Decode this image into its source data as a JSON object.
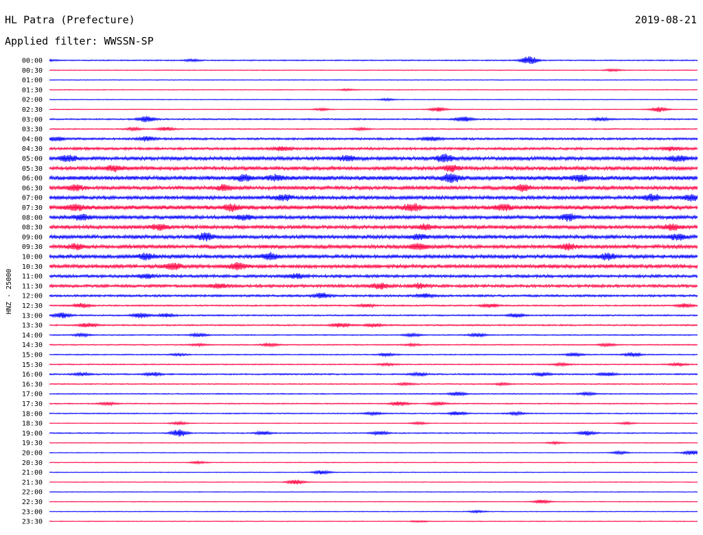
{
  "header": {
    "station": "HL Patra (Prefecture)",
    "date": "2019-08-21",
    "filter_label": "Applied filter: WWSSN-SP"
  },
  "chart_data": {
    "type": "line",
    "title": "HL Patra (Prefecture)",
    "subtitle": "Applied filter: WWSSN-SP",
    "ylabel": "HNZ - 25000",
    "colors": {
      "even": "#0000ff",
      "odd": "#ff0040"
    },
    "rows": [
      {
        "label": "00:00",
        "noise": 1.5,
        "events": [
          {
            "t": 0.0,
            "amp": 2.0
          },
          {
            "t": 0.22,
            "amp": 3.0
          },
          {
            "t": 0.74,
            "amp": 12.0
          }
        ]
      },
      {
        "label": "00:30",
        "noise": 1.0,
        "events": [
          {
            "t": 0.87,
            "amp": 3.0
          }
        ]
      },
      {
        "label": "01:00",
        "noise": 1.0,
        "events": []
      },
      {
        "label": "01:30",
        "noise": 1.0,
        "events": [
          {
            "t": 0.46,
            "amp": 2.5
          }
        ]
      },
      {
        "label": "02:00",
        "noise": 1.0,
        "events": [
          {
            "t": 0.52,
            "amp": 2.5
          }
        ]
      },
      {
        "label": "02:30",
        "noise": 1.0,
        "events": [
          {
            "t": 0.42,
            "amp": 3.0
          },
          {
            "t": 0.6,
            "amp": 6.0
          },
          {
            "t": 0.94,
            "amp": 7.0
          }
        ]
      },
      {
        "label": "03:00",
        "noise": 2.0,
        "events": [
          {
            "t": 0.15,
            "amp": 8.0
          },
          {
            "t": 0.64,
            "amp": 7.0
          },
          {
            "t": 0.85,
            "amp": 4.0
          }
        ]
      },
      {
        "label": "03:30",
        "noise": 1.5,
        "events": [
          {
            "t": 0.13,
            "amp": 4.0
          },
          {
            "t": 0.18,
            "amp": 5.0
          },
          {
            "t": 0.48,
            "amp": 3.0
          }
        ]
      },
      {
        "label": "04:00",
        "noise": 3.0,
        "events": [
          {
            "t": 0.01,
            "amp": 5.0
          },
          {
            "t": 0.15,
            "amp": 6.0
          },
          {
            "t": 0.59,
            "amp": 5.0
          }
        ]
      },
      {
        "label": "04:30",
        "noise": 3.5,
        "events": [
          {
            "t": 0.36,
            "amp": 5.0
          },
          {
            "t": 0.96,
            "amp": 5.0
          }
        ]
      },
      {
        "label": "05:00",
        "noise": 5.0,
        "events": [
          {
            "t": 0.03,
            "amp": 8.0
          },
          {
            "t": 0.46,
            "amp": 7.0
          },
          {
            "t": 0.61,
            "amp": 10.0
          },
          {
            "t": 0.97,
            "amp": 8.0
          }
        ]
      },
      {
        "label": "05:30",
        "noise": 5.0,
        "events": [
          {
            "t": 0.1,
            "amp": 7.0
          },
          {
            "t": 0.62,
            "amp": 8.0
          }
        ]
      },
      {
        "label": "06:00",
        "noise": 6.0,
        "events": [
          {
            "t": 0.3,
            "amp": 8.0
          },
          {
            "t": 0.35,
            "amp": 7.0
          },
          {
            "t": 0.62,
            "amp": 12.0
          },
          {
            "t": 0.82,
            "amp": 8.0
          }
        ]
      },
      {
        "label": "06:30",
        "noise": 5.0,
        "events": [
          {
            "t": 0.04,
            "amp": 7.0
          },
          {
            "t": 0.27,
            "amp": 7.0
          },
          {
            "t": 0.73,
            "amp": 9.0
          }
        ]
      },
      {
        "label": "07:00",
        "noise": 5.0,
        "events": [
          {
            "t": 0.36,
            "amp": 8.0
          },
          {
            "t": 0.93,
            "amp": 9.0
          },
          {
            "t": 0.99,
            "amp": 8.0
          }
        ]
      },
      {
        "label": "07:30",
        "noise": 6.0,
        "events": [
          {
            "t": 0.04,
            "amp": 8.0
          },
          {
            "t": 0.28,
            "amp": 8.0
          },
          {
            "t": 0.56,
            "amp": 10.0
          },
          {
            "t": 0.7,
            "amp": 8.0
          }
        ]
      },
      {
        "label": "08:00",
        "noise": 5.0,
        "events": [
          {
            "t": 0.05,
            "amp": 8.0
          },
          {
            "t": 0.3,
            "amp": 7.0
          },
          {
            "t": 0.8,
            "amp": 9.0
          }
        ]
      },
      {
        "label": "08:30",
        "noise": 5.0,
        "events": [
          {
            "t": 0.17,
            "amp": 7.0
          },
          {
            "t": 0.58,
            "amp": 7.0
          },
          {
            "t": 0.96,
            "amp": 7.0
          }
        ]
      },
      {
        "label": "09:00",
        "noise": 5.0,
        "events": [
          {
            "t": 0.24,
            "amp": 10.0
          },
          {
            "t": 0.57,
            "amp": 6.0
          },
          {
            "t": 0.97,
            "amp": 8.0
          }
        ]
      },
      {
        "label": "09:30",
        "noise": 5.0,
        "events": [
          {
            "t": 0.04,
            "amp": 7.0
          },
          {
            "t": 0.57,
            "amp": 8.0
          },
          {
            "t": 0.8,
            "amp": 7.0
          }
        ]
      },
      {
        "label": "10:00",
        "noise": 5.0,
        "events": [
          {
            "t": 0.15,
            "amp": 8.0
          },
          {
            "t": 0.34,
            "amp": 9.0
          },
          {
            "t": 0.86,
            "amp": 8.0
          }
        ]
      },
      {
        "label": "10:30",
        "noise": 5.0,
        "events": [
          {
            "t": 0.19,
            "amp": 8.0
          },
          {
            "t": 0.29,
            "amp": 9.0
          }
        ]
      },
      {
        "label": "11:00",
        "noise": 4.0,
        "events": [
          {
            "t": 0.15,
            "amp": 6.0
          },
          {
            "t": 0.38,
            "amp": 6.0
          }
        ]
      },
      {
        "label": "11:30",
        "noise": 4.0,
        "events": [
          {
            "t": 0.26,
            "amp": 6.0
          },
          {
            "t": 0.51,
            "amp": 8.0
          },
          {
            "t": 0.57,
            "amp": 6.0
          }
        ]
      },
      {
        "label": "12:00",
        "noise": 3.0,
        "events": [
          {
            "t": 0.42,
            "amp": 7.0
          },
          {
            "t": 0.58,
            "amp": 5.0
          }
        ]
      },
      {
        "label": "12:30",
        "noise": 2.0,
        "events": [
          {
            "t": 0.05,
            "amp": 6.0
          },
          {
            "t": 0.49,
            "amp": 4.0
          },
          {
            "t": 0.68,
            "amp": 5.0
          },
          {
            "t": 0.98,
            "amp": 6.0
          }
        ]
      },
      {
        "label": "13:00",
        "noise": 2.0,
        "events": [
          {
            "t": 0.02,
            "amp": 8.0
          },
          {
            "t": 0.14,
            "amp": 7.0
          },
          {
            "t": 0.18,
            "amp": 5.0
          },
          {
            "t": 0.72,
            "amp": 5.0
          }
        ]
      },
      {
        "label": "13:30",
        "noise": 2.0,
        "events": [
          {
            "t": 0.06,
            "amp": 6.0
          },
          {
            "t": 0.45,
            "amp": 6.0
          },
          {
            "t": 0.5,
            "amp": 5.0
          }
        ]
      },
      {
        "label": "14:00",
        "noise": 1.5,
        "events": [
          {
            "t": 0.05,
            "amp": 4.0
          },
          {
            "t": 0.23,
            "amp": 5.0
          },
          {
            "t": 0.56,
            "amp": 4.0
          },
          {
            "t": 0.66,
            "amp": 5.0
          }
        ]
      },
      {
        "label": "14:30",
        "noise": 1.5,
        "events": [
          {
            "t": 0.23,
            "amp": 3.0
          },
          {
            "t": 0.34,
            "amp": 4.0
          },
          {
            "t": 0.56,
            "amp": 3.0
          },
          {
            "t": 0.86,
            "amp": 4.0
          }
        ]
      },
      {
        "label": "15:00",
        "noise": 1.5,
        "events": [
          {
            "t": 0.2,
            "amp": 3.0
          },
          {
            "t": 0.52,
            "amp": 4.0
          },
          {
            "t": 0.81,
            "amp": 5.0
          },
          {
            "t": 0.9,
            "amp": 6.0
          }
        ]
      },
      {
        "label": "15:30",
        "noise": 1.5,
        "events": [
          {
            "t": 0.52,
            "amp": 3.0
          },
          {
            "t": 0.79,
            "amp": 4.0
          },
          {
            "t": 0.97,
            "amp": 4.0
          }
        ]
      },
      {
        "label": "16:00",
        "noise": 2.0,
        "events": [
          {
            "t": 0.05,
            "amp": 4.0
          },
          {
            "t": 0.16,
            "amp": 5.0
          },
          {
            "t": 0.57,
            "amp": 4.0
          },
          {
            "t": 0.76,
            "amp": 5.0
          },
          {
            "t": 0.86,
            "amp": 5.0
          }
        ]
      },
      {
        "label": "16:30",
        "noise": 1.5,
        "events": [
          {
            "t": 0.55,
            "amp": 3.0
          },
          {
            "t": 0.7,
            "amp": 3.0
          }
        ]
      },
      {
        "label": "17:00",
        "noise": 1.5,
        "events": [
          {
            "t": 0.63,
            "amp": 5.0
          },
          {
            "t": 0.83,
            "amp": 4.0
          }
        ]
      },
      {
        "label": "17:30",
        "noise": 1.5,
        "events": [
          {
            "t": 0.09,
            "amp": 4.0
          },
          {
            "t": 0.54,
            "amp": 6.0
          },
          {
            "t": 0.6,
            "amp": 4.0
          }
        ]
      },
      {
        "label": "18:00",
        "noise": 1.5,
        "events": [
          {
            "t": 0.5,
            "amp": 4.0
          },
          {
            "t": 0.63,
            "amp": 6.0
          },
          {
            "t": 0.72,
            "amp": 4.0
          }
        ]
      },
      {
        "label": "18:30",
        "noise": 1.0,
        "events": [
          {
            "t": 0.2,
            "amp": 4.0
          },
          {
            "t": 0.57,
            "amp": 3.0
          },
          {
            "t": 0.89,
            "amp": 3.0
          }
        ]
      },
      {
        "label": "19:00",
        "noise": 1.5,
        "events": [
          {
            "t": 0.2,
            "amp": 10.0
          },
          {
            "t": 0.33,
            "amp": 5.0
          },
          {
            "t": 0.51,
            "amp": 5.0
          },
          {
            "t": 0.83,
            "amp": 6.0
          }
        ]
      },
      {
        "label": "19:30",
        "noise": 1.0,
        "events": [
          {
            "t": 0.78,
            "amp": 3.0
          }
        ]
      },
      {
        "label": "20:00",
        "noise": 1.0,
        "events": [
          {
            "t": 0.88,
            "amp": 4.0
          },
          {
            "t": 0.99,
            "amp": 6.0
          }
        ]
      },
      {
        "label": "20:30",
        "noise": 1.0,
        "events": [
          {
            "t": 0.23,
            "amp": 3.0
          }
        ]
      },
      {
        "label": "21:00",
        "noise": 1.0,
        "events": [
          {
            "t": 0.42,
            "amp": 6.0
          }
        ]
      },
      {
        "label": "21:30",
        "noise": 1.0,
        "events": [
          {
            "t": 0.38,
            "amp": 7.0
          }
        ]
      },
      {
        "label": "22:00",
        "noise": 1.0,
        "events": []
      },
      {
        "label": "22:30",
        "noise": 1.0,
        "events": [
          {
            "t": 0.76,
            "amp": 5.0
          }
        ]
      },
      {
        "label": "23:00",
        "noise": 1.0,
        "events": [
          {
            "t": 0.66,
            "amp": 3.0
          }
        ]
      },
      {
        "label": "23:30",
        "noise": 1.0,
        "events": [
          {
            "t": 0.57,
            "amp": 2.0
          }
        ]
      }
    ]
  }
}
